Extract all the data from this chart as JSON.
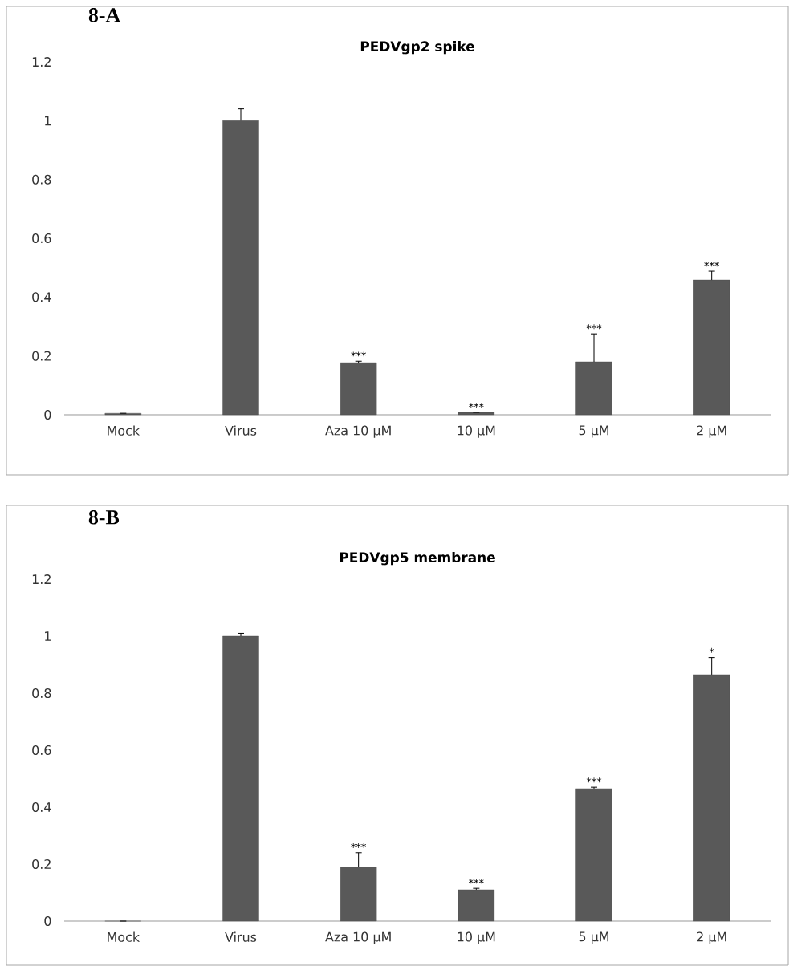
{
  "chart_data": [
    {
      "type": "bar",
      "title": "PEDVgp2 spike",
      "categories": [
        "Mock",
        "Virus",
        "Aza 10 µM",
        "10 µM",
        "5 µM",
        "2 µM"
      ],
      "values": [
        0.005,
        1.0,
        0.177,
        0.008,
        0.18,
        0.458
      ],
      "errors": [
        0,
        0.04,
        0.005,
        0,
        0.095,
        0.03
      ],
      "color": "#595959",
      "ylim": [
        0,
        1.2
      ],
      "yticks": [
        0,
        0.2,
        0.4,
        0.6,
        0.8,
        1,
        1.2
      ],
      "annotations": [
        "8-A",
        {
          "text": "***",
          "x": "Aza 10 µM",
          "y": 0.182
        },
        {
          "text": "***",
          "x": "10 µM",
          "y": 0.008
        },
        {
          "text": "***",
          "x": "5 µM",
          "y": 0.275
        },
        {
          "text": "***",
          "x": "2 µM",
          "y": 0.488
        }
      ]
    },
    {
      "type": "bar",
      "title": "PEDVgp5 membrane",
      "categories": [
        "Mock",
        "Virus",
        "Aza 10 µM",
        "10 µM",
        "5 µM",
        "2 µM"
      ],
      "values": [
        0,
        1.0,
        0.19,
        0.11,
        0.465,
        0.865
      ],
      "errors": [
        0,
        0.01,
        0.05,
        0.005,
        0.005,
        0.06
      ],
      "color": "#595959",
      "ylim": [
        0,
        1.2
      ],
      "yticks": [
        0,
        0.2,
        0.4,
        0.6,
        0.8,
        1,
        1.2
      ],
      "annotations": [
        "8-B",
        {
          "text": "***",
          "x": "Aza 10 µM",
          "y": 0.24
        },
        {
          "text": "***",
          "x": "10 µM",
          "y": 0.115
        },
        {
          "text": "***",
          "x": "5 µM",
          "y": 0.47
        },
        {
          "text": "*",
          "x": "2 µM",
          "y": 0.925
        }
      ]
    }
  ]
}
